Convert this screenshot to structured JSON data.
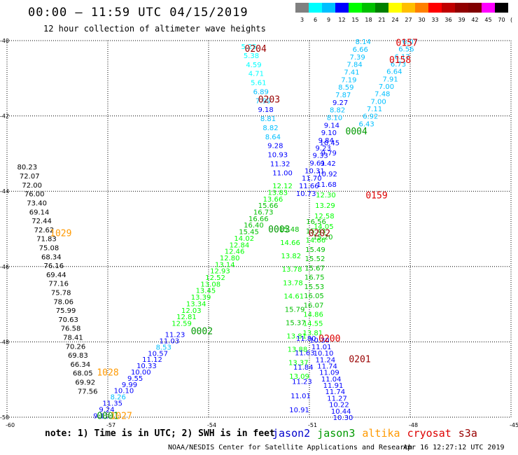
{
  "header": {
    "title": "00:00 – 11:59 UTC 04/15/2019",
    "subtitle": "12 hour collection of altimeter wave heights"
  },
  "color_scale": {
    "unit": "(ft)",
    "bins": [
      {
        "label": "3",
        "color": "#808080"
      },
      {
        "label": "6",
        "color": "#00ffff"
      },
      {
        "label": "9",
        "color": "#00bfff"
      },
      {
        "label": "12",
        "color": "#0000ff"
      },
      {
        "label": "15",
        "color": "#00ff00"
      },
      {
        "label": "18",
        "color": "#00c000"
      },
      {
        "label": "21",
        "color": "#008000"
      },
      {
        "label": "24",
        "color": "#ffff00"
      },
      {
        "label": "27",
        "color": "#ffbf00"
      },
      {
        "label": "30",
        "color": "#ff8000"
      },
      {
        "label": "33",
        "color": "#ff0000"
      },
      {
        "label": "36",
        "color": "#c00000"
      },
      {
        "label": "39",
        "color": "#900000"
      },
      {
        "label": "42",
        "color": "#800000"
      },
      {
        "label": "45",
        "color": "#ff00ff"
      },
      {
        "label": "70",
        "color": "#000000"
      }
    ]
  },
  "footer": {
    "note": "note: 1) Time is in UTC; 2) SWH is in feet",
    "satellites": [
      {
        "name": "jason2",
        "color": "#0000cc"
      },
      {
        "name": "jason3",
        "color": "#009900"
      },
      {
        "name": "altika",
        "color": "#ff9900"
      },
      {
        "name": "cryosat",
        "color": "#dd0000"
      },
      {
        "name": "s3a",
        "color": "#990000"
      }
    ],
    "credit": "NOAA/NESDIS Center for Satellite Applications and Research",
    "timestamp": "Apr 16 12:27:12 UTC 2019"
  },
  "chart_data": {
    "type": "scatter",
    "x_axis": {
      "range": [
        -60,
        -45
      ],
      "ticks": [
        "-60",
        "-57",
        "-54",
        "-51",
        "-48",
        "-45"
      ]
    },
    "y_axis": {
      "range": [
        -50,
        -40
      ],
      "ticks": [
        "-40",
        "-42",
        "-44",
        "-46",
        "-48",
        "-50"
      ]
    },
    "grid": true,
    "time_labels": [
      {
        "label": "0157",
        "lon": -48.1,
        "lat": -40.05,
        "color": "#dd0000"
      },
      {
        "label": "0158",
        "lon": -48.3,
        "lat": -40.5,
        "color": "#dd0000"
      },
      {
        "label": "0204",
        "lon": -52.6,
        "lat": -40.2,
        "color": "#990000"
      },
      {
        "label": "0203",
        "lon": -52.2,
        "lat": -41.55,
        "color": "#990000"
      },
      {
        "label": "0004",
        "lon": -49.6,
        "lat": -42.4,
        "color": "#009900"
      },
      {
        "label": "0159",
        "lon": -49.0,
        "lat": -44.1,
        "color": "#dd0000"
      },
      {
        "label": "1029",
        "lon": -58.4,
        "lat": -45.1,
        "color": "#ff9900"
      },
      {
        "label": "0003",
        "lon": -51.9,
        "lat": -45.0,
        "color": "#009900"
      },
      {
        "label": "0202",
        "lon": -50.7,
        "lat": -45.1,
        "color": "#990000"
      },
      {
        "label": "0002",
        "lon": -54.2,
        "lat": -47.7,
        "color": "#009900"
      },
      {
        "label": "0200",
        "lon": -50.4,
        "lat": -47.9,
        "color": "#dd0000"
      },
      {
        "label": "0201",
        "lon": -49.5,
        "lat": -48.45,
        "color": "#990000"
      },
      {
        "label": "1028",
        "lon": -57.0,
        "lat": -48.8,
        "color": "#ff9900"
      },
      {
        "label": "0001",
        "lon": -57.0,
        "lat": -49.95,
        "color": "#009900"
      },
      {
        "label": "1027",
        "lon": -56.6,
        "lat": -49.95,
        "color": "#ff9900"
      }
    ],
    "tracks": [
      {
        "satellite": "cryosat",
        "values": [
          6.07,
          6.56,
          6.17,
          6.73,
          6.64,
          7.91,
          7.0,
          7.48,
          7.0,
          7.11,
          6.92,
          6.43
        ],
        "start": [
          -48.0,
          -40.02
        ],
        "end": [
          -49.3,
          -42.2
        ]
      },
      {
        "satellite": "s3a",
        "values": [
          5.25,
          5.38,
          4.59,
          4.71,
          5.61,
          6.89,
          7.99,
          9.18,
          8.81,
          8.82,
          8.64,
          9.28,
          10.93,
          11.32,
          11.0
        ],
        "start": [
          -52.8,
          -40.15
        ],
        "end": [
          -51.8,
          -43.5
        ]
      },
      {
        "satellite": "s3a",
        "values": [
          8.14,
          6.66,
          7.39,
          7.84,
          7.41,
          7.19,
          8.59,
          7.87,
          9.27,
          8.82,
          8.1,
          9.14,
          9.1,
          9.84,
          9.23,
          9.33,
          9.61,
          10.31,
          11.7,
          11.66,
          10.73
        ],
        "start": [
          -49.4,
          -40.02
        ],
        "end": [
          -51.1,
          -44.05
        ]
      },
      {
        "satellite": "jason3",
        "values": [
          12.12,
          13.83,
          13.66,
          15.66,
          16.73,
          16.66,
          16.4,
          15.45,
          14.02,
          12.84,
          12.46,
          12.8,
          13.14,
          12.93,
          12.52,
          13.08,
          13.45,
          13.39,
          13.34,
          12.03,
          12.81,
          12.59
        ],
        "start": [
          -51.8,
          -43.85
        ],
        "end": [
          -54.8,
          -47.5
        ]
      },
      {
        "satellite": "jason2",
        "values": [
          11.23,
          11.03,
          8.53,
          10.57,
          11.12,
          10.33,
          10.0,
          9.55,
          9.99,
          10.1,
          8.26,
          11.35,
          9.24,
          9.11
        ],
        "start": [
          -55.0,
          -47.8
        ],
        "end": [
          -57.2,
          -49.95
        ]
      },
      {
        "satellite": "jason3",
        "values": [
          16.56,
          15.43,
          14.66,
          15.49,
          15.52,
          15.67,
          16.75,
          15.53,
          16.05,
          16.07,
          14.86,
          14.55,
          13.81
        ],
        "start": [
          -50.8,
          -44.8
        ],
        "end": [
          -50.9,
          -47.75
        ]
      },
      {
        "satellite": "jason2",
        "values": [
          10.45,
          9.79,
          9.42,
          10.92,
          11.68,
          12.3,
          13.29,
          12.58,
          14.05,
          15.2
        ],
        "start": [
          -50.4,
          -42.7
        ],
        "end": [
          -50.6,
          -45.2
        ]
      },
      {
        "satellite": "jason2",
        "values": [
          10.3,
          11.01,
          10.1,
          11.24,
          11.74,
          11.09,
          11.04,
          11.91,
          11.74,
          11.27,
          10.22,
          10.44,
          10.3
        ],
        "start": [
          -50.7,
          -47.95
        ],
        "end": [
          -50.0,
          -50.0
        ]
      },
      {
        "satellite": "jason3",
        "values": [
          15.48,
          14.66,
          13.82,
          13.78,
          13.78,
          14.61,
          15.79,
          15.37,
          13.81,
          13.88,
          13.37,
          13.09
        ],
        "start": [
          -51.6,
          -45.0
        ],
        "end": [
          -51.3,
          -48.9
        ]
      },
      {
        "satellite": "jason2",
        "values": [
          11.8,
          11.63,
          11.84,
          11.23,
          11.01,
          10.91
        ],
        "start": [
          -51.1,
          -47.9
        ],
        "end": [
          -51.3,
          -49.8
        ]
      },
      {
        "satellite": "altika",
        "values": [
          80.23,
          72.07,
          72.0,
          76.0,
          73.4,
          69.14,
          72.44,
          72.62,
          71.83,
          75.08,
          68.34,
          76.16,
          69.44,
          77.16,
          75.78,
          78.06,
          75.99,
          70.63,
          76.58,
          78.41,
          70.26,
          69.83,
          66.34,
          68.05,
          69.92,
          77.56
        ],
        "start": [
          -59.4,
          -43.35
        ],
        "end": [
          -57.6,
          -49.3
        ]
      }
    ]
  }
}
